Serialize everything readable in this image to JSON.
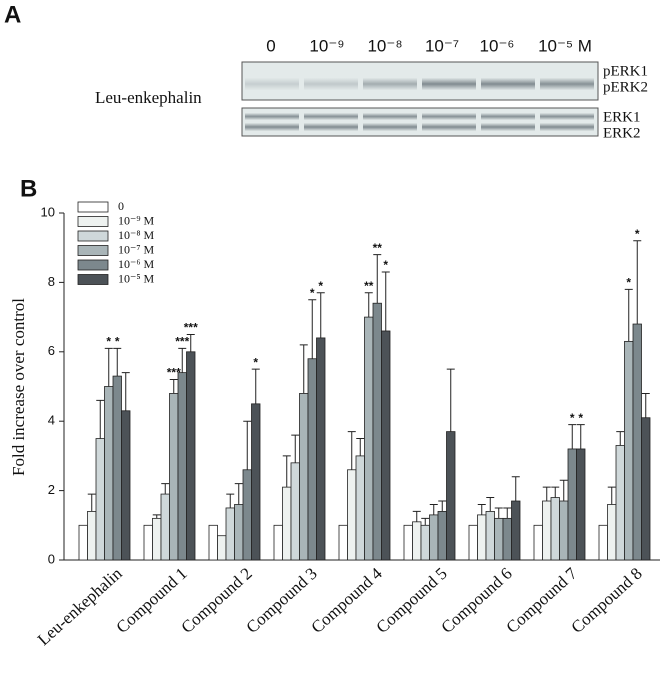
{
  "panel_a": {
    "label": "A",
    "sample": "Leu-enkephalin",
    "lanes": [
      "0",
      "10⁻⁹",
      "10⁻⁸",
      "10⁻⁷",
      "10⁻⁶",
      "10⁻⁵ M"
    ],
    "bands": [
      "pERK1",
      "pERK2",
      "ERK1",
      "ERK2"
    ]
  },
  "chart_data": {
    "type": "bar",
    "panel_label": "B",
    "y_label": "Fold increase over control",
    "categories": [
      "Leu-enkephalin",
      "Compound 1",
      "Compound 2",
      "Compound 3",
      "Compound 4",
      "Compound 5",
      "Compound 6",
      "Compound 7",
      "Compound 8"
    ],
    "ylim": [
      0,
      10
    ],
    "yticks": [
      0,
      2,
      4,
      6,
      8,
      10
    ],
    "series": [
      {
        "name": "0",
        "color": "#ffffff",
        "values": [
          1.0,
          1.0,
          1.0,
          1.0,
          1.0,
          1.0,
          1.0,
          1.0,
          1.0
        ],
        "errors": [
          null,
          null,
          null,
          null,
          null,
          null,
          null,
          null,
          null
        ],
        "significance": [
          null,
          null,
          null,
          null,
          null,
          null,
          null,
          null,
          null
        ]
      },
      {
        "name": "10⁻⁹ M",
        "color": "#eef2f0",
        "values": [
          1.4,
          1.2,
          0.7,
          2.1,
          2.6,
          1.1,
          1.3,
          1.7,
          1.6
        ],
        "errors": [
          0.5,
          0.1,
          null,
          0.9,
          1.1,
          0.3,
          0.3,
          0.4,
          0.5
        ],
        "significance": [
          null,
          null,
          null,
          null,
          null,
          null,
          null,
          null,
          null
        ]
      },
      {
        "name": "10⁻⁸ M",
        "color": "#cfd8da",
        "values": [
          3.5,
          1.9,
          1.5,
          2.8,
          3.0,
          1.0,
          1.4,
          1.8,
          3.3
        ],
        "errors": [
          1.1,
          0.3,
          0.4,
          0.8,
          0.5,
          0.2,
          0.4,
          0.3,
          0.4
        ],
        "significance": [
          null,
          null,
          null,
          null,
          null,
          null,
          null,
          null,
          null
        ]
      },
      {
        "name": "10⁻⁷ M",
        "color": "#a9b5b8",
        "values": [
          5.0,
          4.8,
          1.6,
          4.8,
          7.0,
          1.3,
          1.2,
          1.7,
          6.3
        ],
        "errors": [
          1.1,
          0.4,
          0.6,
          1.4,
          0.7,
          0.3,
          0.3,
          0.6,
          1.5
        ],
        "significance": [
          "*",
          "***",
          null,
          null,
          "**",
          null,
          null,
          null,
          "*"
        ]
      },
      {
        "name": "10⁻⁶ M",
        "color": "#7c888d",
        "values": [
          5.3,
          5.4,
          2.6,
          5.8,
          7.4,
          1.4,
          1.2,
          3.2,
          6.8
        ],
        "errors": [
          0.8,
          0.7,
          1.4,
          1.7,
          1.4,
          0.3,
          0.3,
          0.7,
          2.4
        ],
        "significance": [
          "*",
          "***",
          null,
          "*",
          "**",
          null,
          null,
          "*",
          "*"
        ]
      },
      {
        "name": "10⁻⁵ M",
        "color": "#4c5257",
        "values": [
          4.3,
          6.0,
          4.5,
          6.4,
          6.6,
          3.7,
          1.7,
          3.2,
          4.1
        ],
        "errors": [
          1.1,
          0.5,
          1.0,
          1.3,
          1.7,
          1.8,
          0.7,
          0.7,
          0.7
        ],
        "significance": [
          null,
          "***",
          "*",
          "*",
          "*",
          null,
          null,
          "*",
          null
        ]
      }
    ]
  }
}
